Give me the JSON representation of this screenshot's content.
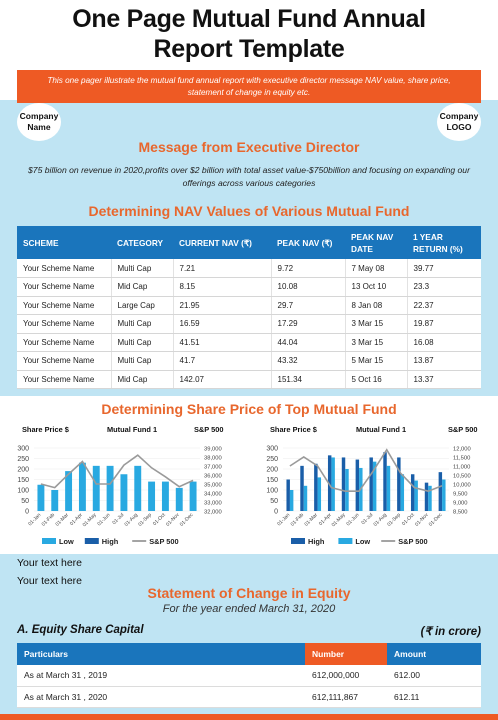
{
  "title_line1": "One Page Mutual Fund Annual",
  "title_line2": "Report Template",
  "banner_text": "This one pager illustrate the mutual fund annual report with executive director message NAV value, share price, statement of change in equity etc.",
  "company_name_label": [
    "Company",
    "Name"
  ],
  "company_logo_label": [
    "Company",
    "LOGO"
  ],
  "exec": {
    "heading": "Message from Executive Director",
    "text": "$75 billion on revenue in 2020,profits over $2 billion with total asset value-$750billion and focusing on expanding our offerings across various categories"
  },
  "nav": {
    "heading": "Determining NAV Values of Various Mutual Fund",
    "columns": [
      "SCHEME",
      "CATEGORY",
      "CURRENT NAV (₹)",
      "PEAK NAV (₹)",
      "PEAK NAV DATE",
      "1 YEAR RETURN (%)"
    ],
    "rows": [
      [
        "Your Scheme Name",
        "Multi Cap",
        "7.21",
        "9.72",
        "7 May 08",
        "39.77"
      ],
      [
        "Your Scheme Name",
        "Mid Cap",
        "8.15",
        "10.08",
        "13 Oct 10",
        "23.3"
      ],
      [
        "Your Scheme Name",
        "Large Cap",
        "21.95",
        "29.7",
        "8 Jan 08",
        "22.37"
      ],
      [
        "Your Scheme Name",
        "Multi Cap",
        "16.59",
        "17.29",
        "3 Mar 15",
        "19.87"
      ],
      [
        "Your Scheme Name",
        "Multi Cap",
        "41.51",
        "44.04",
        "3 Mar 15",
        "16.08"
      ],
      [
        "Your Scheme Name",
        "Multi Cap",
        "41.7",
        "43.32",
        "5 Mar 15",
        "13.87"
      ],
      [
        "Your Scheme Name",
        "Mid Cap",
        "142.07",
        "151.34",
        "5 Oct 16",
        "13.37"
      ]
    ]
  },
  "share": {
    "heading": "Determining Share Price of Top Mutual Fund"
  },
  "chart_data": [
    {
      "type": "bar",
      "title": "Mutual Fund 1",
      "ylabel_left": "Share Price $",
      "ylabel_right": "S&P 500",
      "categories": [
        "01-Jan",
        "01-Feb",
        "01-Mar",
        "01-Apr",
        "01-May",
        "01-Jun",
        "01-Jul",
        "01-Aug",
        "01-Sep",
        "01-Oct",
        "01-Nov",
        "01-Dec"
      ],
      "ylim": [
        0,
        300
      ],
      "y2lim": [
        32000,
        39000
      ],
      "yticks": [
        0,
        50,
        100,
        150,
        200,
        250,
        300
      ],
      "y2ticks": [
        "32,000",
        "33,000",
        "34,000",
        "35,000",
        "36,000",
        "37,000",
        "38,000",
        "39,000"
      ],
      "series": [
        {
          "name": "Low",
          "kind": "bar",
          "color": "#29a9e1",
          "values": [
            125,
            100,
            190,
            230,
            215,
            215,
            175,
            215,
            140,
            140,
            110,
            140
          ]
        },
        {
          "name": "High",
          "kind": "bar",
          "color": "#1a5ea8",
          "values": [
            0,
            0,
            0,
            0,
            0,
            0,
            0,
            0,
            0,
            0,
            0,
            0
          ]
        },
        {
          "name": "S&P 500",
          "kind": "line",
          "axis": "right",
          "color": "#9a9a9a",
          "values": [
            35000,
            34600,
            36100,
            37500,
            35000,
            35000,
            37100,
            38200,
            36800,
            35800,
            34700,
            35400
          ]
        }
      ],
      "legend": [
        "Low",
        "High",
        "S&P 500"
      ]
    },
    {
      "type": "bar",
      "title": "Mutual Fund 1",
      "ylabel_left": "Share Price $",
      "ylabel_right": "S&P 500",
      "categories": [
        "01-Jan",
        "01-Feb",
        "01-Mar",
        "01-Apr",
        "01-May",
        "01-Jun",
        "01-Jul",
        "01-Aug",
        "01-Sep",
        "01-Oct",
        "01-Nov",
        "01-Dec"
      ],
      "ylim": [
        0,
        300
      ],
      "y2lim": [
        8500,
        12000
      ],
      "yticks": [
        0,
        50,
        100,
        150,
        200,
        250,
        300
      ],
      "y2ticks": [
        "8,500",
        "9,000",
        "9,500",
        "10,000",
        "10,500",
        "11,000",
        "11,500",
        "12,000"
      ],
      "series": [
        {
          "name": "High",
          "kind": "bar",
          "color": "#1a5ea8",
          "values": [
            150,
            215,
            225,
            265,
            255,
            245,
            255,
            280,
            255,
            175,
            135,
            185
          ]
        },
        {
          "name": "Low",
          "kind": "bar",
          "color": "#29a9e1",
          "values": [
            100,
            120,
            160,
            255,
            200,
            205,
            235,
            215,
            175,
            145,
            120,
            150
          ]
        },
        {
          "name": "S&P 500",
          "kind": "line",
          "axis": "right",
          "color": "#9a9a9a",
          "values": [
            11000,
            11500,
            11000,
            9800,
            9600,
            9600,
            10700,
            11900,
            10600,
            9800,
            9600,
            9900
          ]
        }
      ],
      "legend": [
        "High",
        "Low",
        "S&P 500"
      ]
    }
  ],
  "your_text_1": "Your text here",
  "your_text_2": "Your text here",
  "equity": {
    "heading": "Statement of Change in Equity",
    "subheading": "For the year ended March 31, 2020",
    "section_label": "A. Equity Share Capital",
    "unit_label": "(₹ in crore)",
    "columns": [
      "Particulars",
      "Number",
      "Amount"
    ],
    "header_colors": [
      "#1a75bc",
      "#ee5a24",
      "#1a75bc"
    ],
    "rows": [
      [
        "As at March 31 , 2019",
        "612,000,000",
        "612.00"
      ],
      [
        "As at March 31 , 2020",
        "612,111,867",
        "612.11"
      ]
    ]
  },
  "colors": {
    "accent_orange": "#ee5a24",
    "heading_orange": "#e8672d",
    "header_blue": "#1a75bc",
    "light_blue_bg": "#bfe4f3"
  }
}
